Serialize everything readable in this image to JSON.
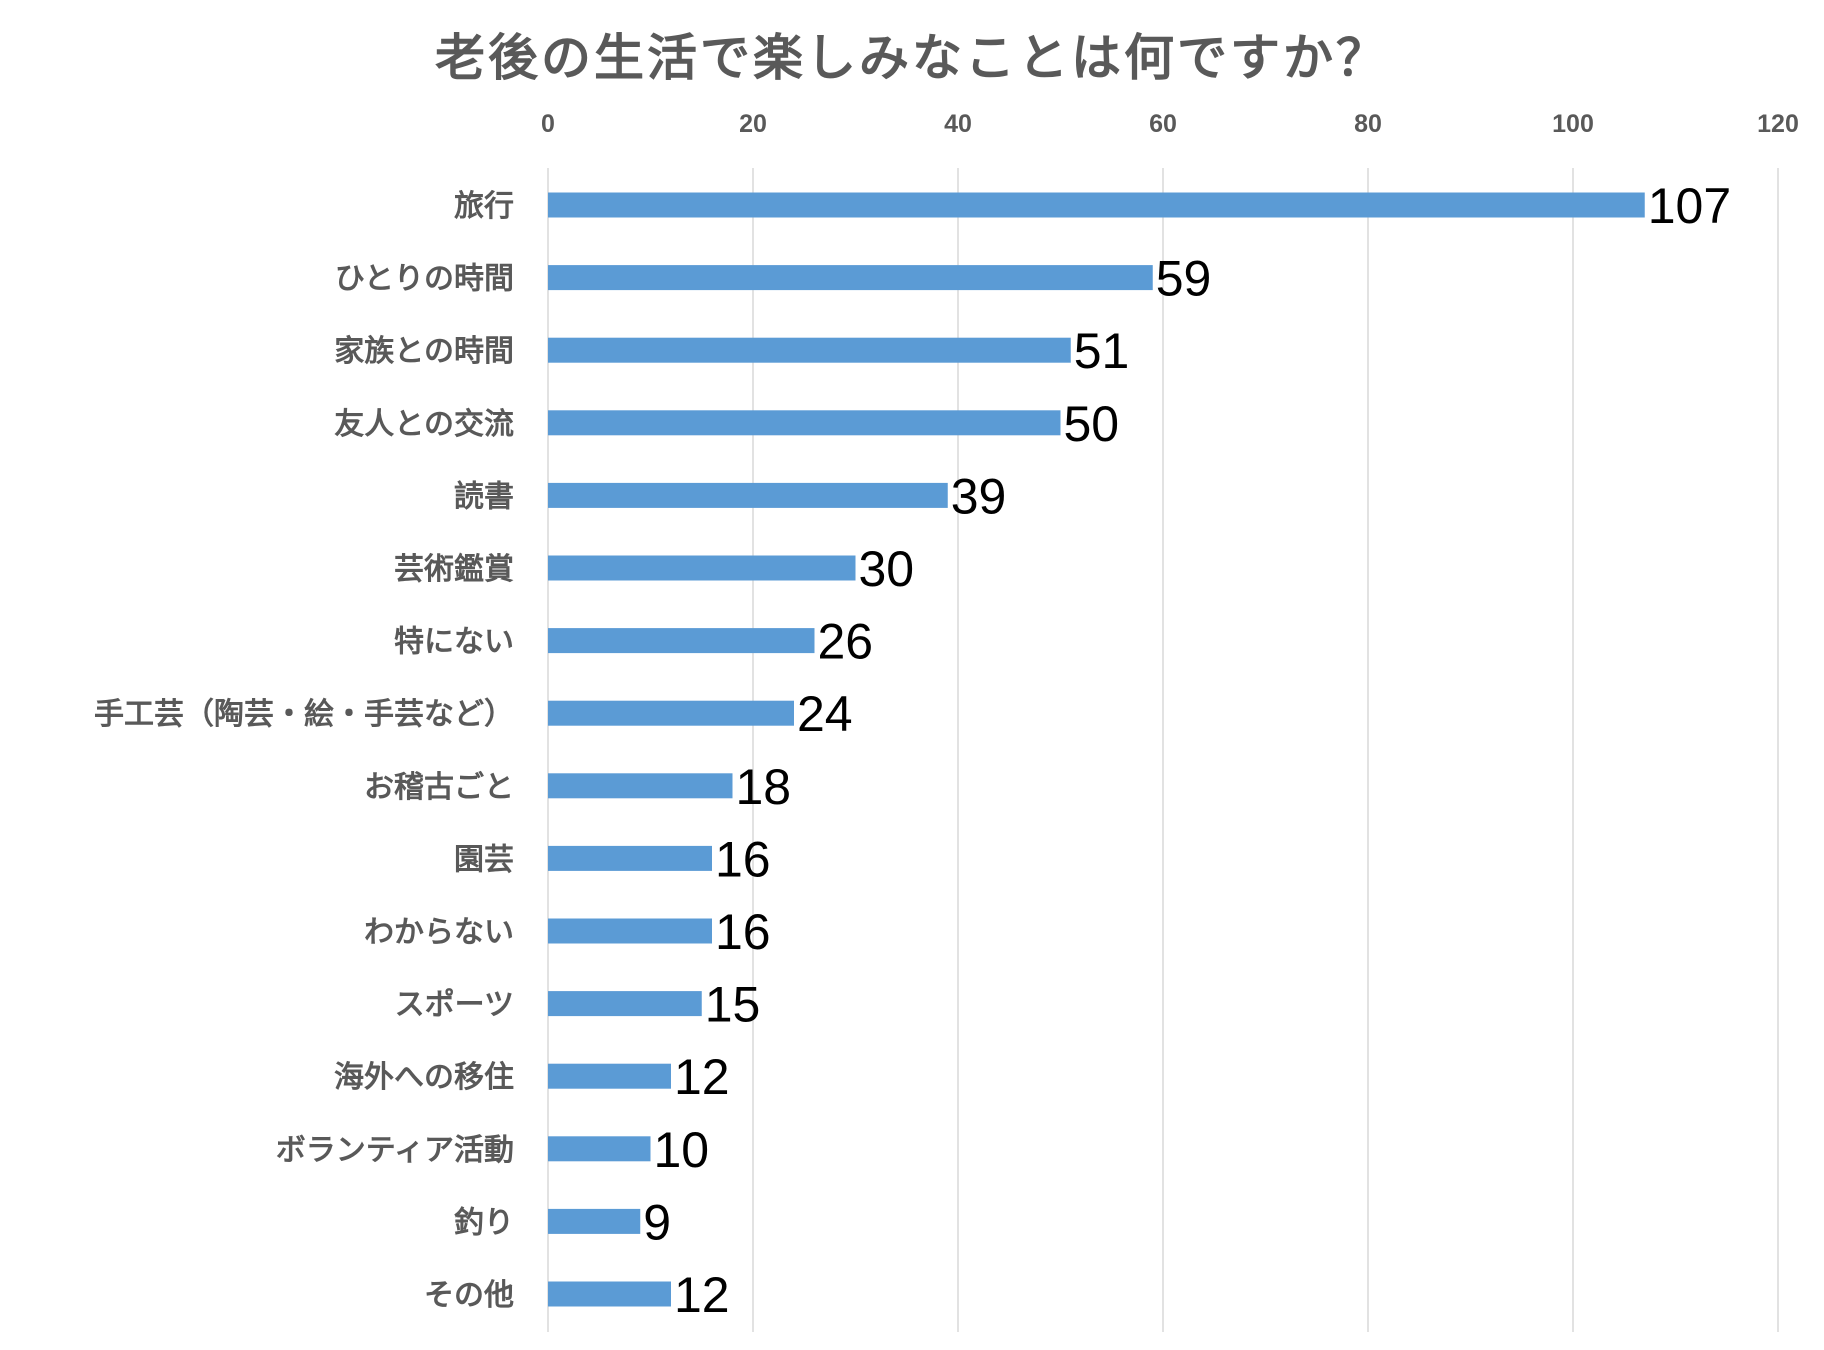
{
  "chart_data": {
    "type": "bar",
    "orientation": "horizontal",
    "title": "老後の生活で楽しみなことは何ですか？",
    "xlabel": "",
    "ylabel": "",
    "xlim": [
      0,
      120
    ],
    "x_ticks": [
      0,
      20,
      40,
      60,
      80,
      100,
      120
    ],
    "grid": true,
    "legend": "none",
    "bar_color": "#5b9bd5",
    "categories": [
      "旅行",
      "ひとりの時間",
      "家族との時間",
      "友人との交流",
      "読書",
      "芸術鑑賞",
      "特にない",
      "手工芸（陶芸・絵・手芸など）",
      "お稽古ごと",
      "園芸",
      "わからない",
      "スポーツ",
      "海外への移住",
      "ボランティア活動",
      "釣り",
      "その他"
    ],
    "values": [
      107,
      59,
      51,
      50,
      39,
      30,
      26,
      24,
      18,
      16,
      16,
      15,
      12,
      10,
      9,
      12
    ]
  }
}
